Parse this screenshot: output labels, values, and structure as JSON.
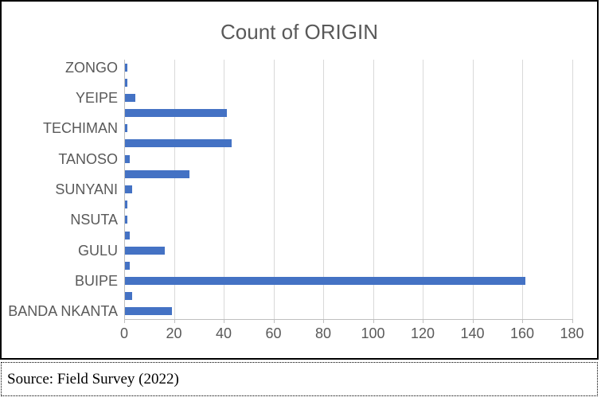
{
  "title": "Count of ORIGIN",
  "source_note": "Source: Field Survey (2022)",
  "colors": {
    "bar": "#4472C4",
    "gridline": "#D9D9D9",
    "axis": "#BFBFBF",
    "chart_text": "#595959",
    "border": "#000000"
  },
  "chart_data": {
    "type": "bar",
    "orientation": "horizontal",
    "title": "Count of ORIGIN",
    "categories": [
      "ZONGO",
      "",
      "YEIPE",
      "",
      "TECHIMAN",
      "",
      "TANOSO",
      "",
      "SUNYANI",
      "",
      "NSUTA",
      "",
      "GULU",
      "",
      "BUIPE",
      "",
      "BANDA NKANTA"
    ],
    "values": [
      1,
      1,
      4,
      41,
      1,
      43,
      2,
      26,
      3,
      1,
      1,
      2,
      16,
      2,
      161,
      3,
      19
    ],
    "x_ticks": [
      0,
      20,
      40,
      60,
      80,
      100,
      120,
      140,
      160,
      180
    ],
    "xlim": [
      0,
      180
    ],
    "gridlines": "vertical",
    "legend": null,
    "note": "only every other category label shown on axis"
  }
}
